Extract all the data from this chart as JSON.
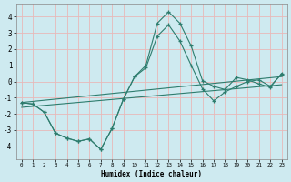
{
  "xlabel": "Humidex (Indice chaleur)",
  "background_color": "#ceeaf0",
  "grid_color": "#e8b8b8",
  "line_color": "#2e7d6e",
  "xlim": [
    -0.5,
    23.5
  ],
  "ylim": [
    -4.8,
    4.8
  ],
  "xtick_labels": [
    "0",
    "1",
    "2",
    "3",
    "4",
    "5",
    "6",
    "7",
    "8",
    "9",
    "10",
    "11",
    "12",
    "13",
    "14",
    "15",
    "16",
    "17",
    "18",
    "19",
    "20",
    "21",
    "22",
    "23"
  ],
  "ytick_values": [
    -4,
    -3,
    -2,
    -1,
    0,
    1,
    2,
    3,
    4
  ],
  "series_with_markers": [
    {
      "x": [
        0,
        1,
        2,
        3,
        4,
        5,
        6,
        7,
        8,
        9,
        10,
        11,
        12,
        13,
        14,
        15,
        16,
        17,
        18,
        19,
        20,
        21,
        22,
        23
      ],
      "y": [
        -1.3,
        -1.4,
        -1.9,
        -3.2,
        -3.5,
        -3.7,
        -3.55,
        -4.2,
        -2.9,
        -1.1,
        0.3,
        1.0,
        3.6,
        4.3,
        3.6,
        2.2,
        0.05,
        -0.3,
        -0.5,
        0.25,
        0.1,
        -0.15,
        -0.35,
        0.5
      ]
    },
    {
      "x": [
        0,
        1,
        2,
        3,
        4,
        5,
        6,
        7,
        8,
        9,
        10,
        11,
        12,
        13,
        14,
        15,
        16,
        17,
        18,
        19,
        20,
        21,
        22,
        23
      ],
      "y": [
        -1.3,
        -1.4,
        -1.9,
        -3.2,
        -3.5,
        -3.7,
        -3.55,
        -4.2,
        -2.9,
        -1.1,
        0.3,
        0.85,
        2.8,
        3.5,
        2.5,
        1.0,
        -0.45,
        -1.2,
        -0.65,
        -0.3,
        0.0,
        0.1,
        -0.3,
        0.45
      ]
    }
  ],
  "series_linear": [
    {
      "x": [
        0,
        23
      ],
      "y": [
        -1.3,
        0.3
      ]
    },
    {
      "x": [
        0,
        23
      ],
      "y": [
        -1.6,
        -0.2
      ]
    }
  ]
}
